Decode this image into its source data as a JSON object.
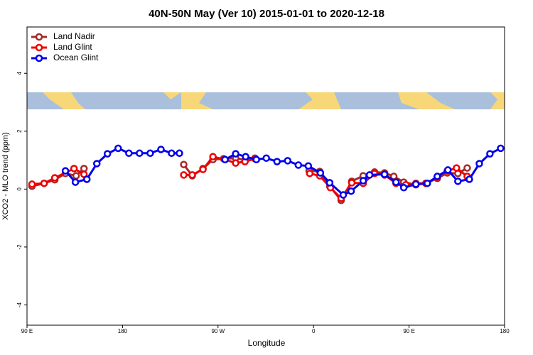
{
  "chart_data": {
    "type": "line",
    "title": "40N-50N May (Ver 10)   2015-01-01 to 2020-12-18",
    "x_label": "Longitude",
    "y_label": "XCO2 - MLO trend (ppm)",
    "xlim": [
      90,
      540
    ],
    "ylim": [
      -4.7,
      5.6
    ],
    "xticks": [
      {
        "value": 90,
        "label": "90 E"
      },
      {
        "value": 180,
        "label": "180"
      },
      {
        "value": 270,
        "label": "90 W"
      },
      {
        "value": 360,
        "label": "0"
      },
      {
        "value": 450,
        "label": "90 E"
      },
      {
        "value": 540,
        "label": "180"
      }
    ],
    "yticks": [
      -4,
      -2,
      0,
      2,
      4
    ],
    "legend": "top-left",
    "series": [
      {
        "name": "Land Nadir",
        "color": "#a52a2a",
        "x": [
          94.7,
          106.1,
          116.2,
          126.2,
          136.3,
          143.7,
          null,
          237.7,
          245.7,
          255.8,
          265.2,
          275.2,
          286.6,
          295.4,
          304.8,
          null,
          355.8,
          365.8,
          375.2,
          386,
          396,
          406.8,
          417.5,
          426.9,
          435.6,
          445,
          456.4,
          465.8,
          476.6,
          486,
          496,
          504.8
        ],
        "values": [
          0.1,
          0.2,
          0.32,
          0.54,
          0.46,
          0.71,
          null,
          0.85,
          0.46,
          0.71,
          1.02,
          1.05,
          1.07,
          1.0,
          1.07,
          null,
          0.63,
          0.61,
          0.1,
          -0.39,
          0.27,
          0.46,
          0.59,
          0.56,
          0.44,
          0.24,
          0.15,
          0.2,
          0.37,
          0.56,
          0.54,
          0.73
        ]
      },
      {
        "name": "Land Glint",
        "color": "#ee0000",
        "x": [
          94.7,
          106.1,
          116.2,
          134.3,
          143.7,
          null,
          237.7,
          245.7,
          255.8,
          265.2,
          276.6,
          286.6,
          295.4,
          304.8,
          null,
          356.4,
          365.8,
          375.9,
          386,
          396,
          406.8,
          417.5,
          426.9,
          437.7,
          447,
          456.4,
          465.8,
          476.6,
          486,
          494.7,
          504.8
        ],
        "values": [
          0.17,
          0.2,
          0.39,
          0.71,
          0.51,
          null,
          0.49,
          0.49,
          0.68,
          1.12,
          1.02,
          0.9,
          0.95,
          1.05,
          null,
          0.54,
          0.46,
          0.05,
          -0.32,
          0.22,
          0.2,
          0.54,
          0.49,
          0.2,
          0.15,
          0.2,
          0.2,
          0.41,
          0.63,
          0.73,
          0.44
        ]
      },
      {
        "name": "Ocean Glint",
        "color": "#0000ee",
        "x": [
          126.2,
          135.6,
          146.4,
          155.8,
          165.8,
          175.9,
          186,
          196,
          206.1,
          216.2,
          226.2,
          233.6,
          null,
          276.6,
          286.6,
          296,
          306.1,
          315.5,
          325.6,
          335.6,
          345.7,
          355.1,
          366.5,
          375.2,
          388,
          395.4,
          406.8,
          412.8,
          426.9,
          437.7,
          445,
          456.4,
          467.2,
          476.6,
          486.6,
          496,
          506.8,
          516.2,
          526.2,
          536.3
        ],
        "values": [
          0.63,
          0.24,
          0.34,
          0.88,
          1.22,
          1.41,
          1.24,
          1.24,
          1.24,
          1.37,
          1.24,
          1.24,
          null,
          1.02,
          1.22,
          1.12,
          1.02,
          1.07,
          0.95,
          0.98,
          0.83,
          0.8,
          0.56,
          0.22,
          -0.2,
          -0.07,
          0.29,
          0.49,
          0.51,
          0.24,
          0.05,
          0.17,
          0.2,
          0.44,
          0.66,
          0.27,
          0.34,
          0.88,
          1.22,
          1.41
        ]
      }
    ]
  }
}
